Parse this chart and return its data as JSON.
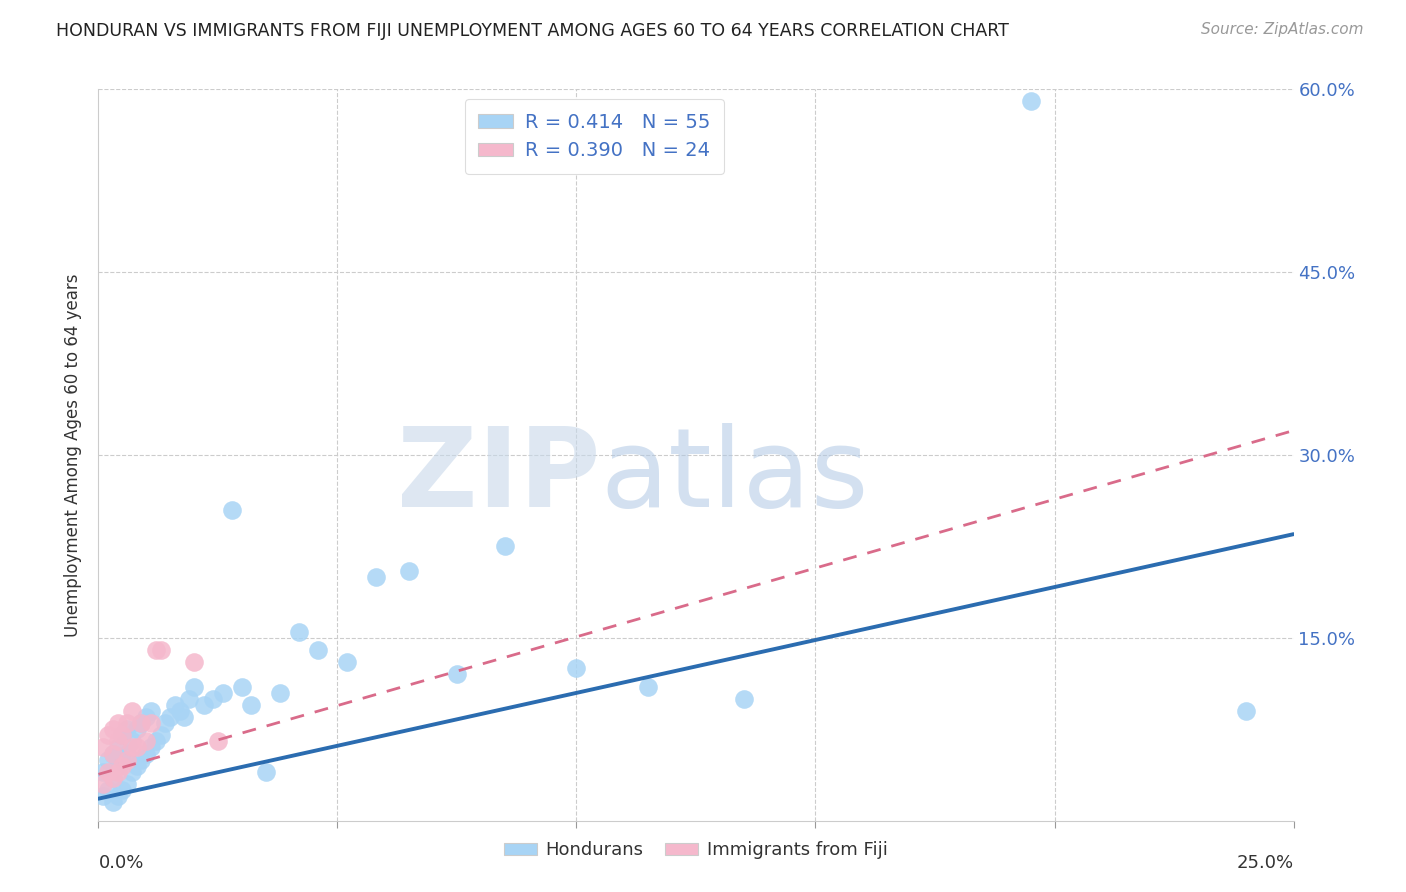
{
  "title": "HONDURAN VS IMMIGRANTS FROM FIJI UNEMPLOYMENT AMONG AGES 60 TO 64 YEARS CORRELATION CHART",
  "source": "Source: ZipAtlas.com",
  "ylabel": "Unemployment Among Ages 60 to 64 years",
  "hondurans_color": "#a8d4f5",
  "fiji_color": "#f5b8cc",
  "hondurans_line_color": "#2b6cb0",
  "fiji_line_color": "#d96b8a",
  "legend_hondurans_R": "0.414",
  "legend_hondurans_N": "55",
  "legend_fiji_R": "0.390",
  "legend_fiji_N": "24",
  "xlim": [
    0.0,
    0.25
  ],
  "ylim": [
    0.0,
    0.6
  ],
  "hondurans_line_x0": 0.0,
  "hondurans_line_y0": 0.018,
  "hondurans_line_x1": 0.25,
  "hondurans_line_y1": 0.235,
  "fiji_line_x0": 0.0,
  "fiji_line_y0": 0.038,
  "fiji_line_x1": 0.25,
  "fiji_line_y1": 0.32,
  "hondurans_x": [
    0.001,
    0.001,
    0.002,
    0.002,
    0.003,
    0.003,
    0.003,
    0.004,
    0.004,
    0.004,
    0.005,
    0.005,
    0.005,
    0.006,
    0.006,
    0.006,
    0.007,
    0.007,
    0.008,
    0.008,
    0.009,
    0.009,
    0.01,
    0.01,
    0.011,
    0.011,
    0.012,
    0.013,
    0.014,
    0.015,
    0.016,
    0.017,
    0.018,
    0.019,
    0.02,
    0.022,
    0.024,
    0.026,
    0.028,
    0.03,
    0.032,
    0.035,
    0.038,
    0.042,
    0.046,
    0.052,
    0.058,
    0.065,
    0.075,
    0.085,
    0.1,
    0.115,
    0.135,
    0.195,
    0.24
  ],
  "hondurans_y": [
    0.02,
    0.04,
    0.025,
    0.05,
    0.015,
    0.035,
    0.055,
    0.02,
    0.045,
    0.06,
    0.025,
    0.05,
    0.07,
    0.03,
    0.055,
    0.075,
    0.04,
    0.065,
    0.045,
    0.075,
    0.05,
    0.08,
    0.055,
    0.085,
    0.06,
    0.09,
    0.065,
    0.07,
    0.08,
    0.085,
    0.095,
    0.09,
    0.085,
    0.1,
    0.11,
    0.095,
    0.1,
    0.105,
    0.255,
    0.11,
    0.095,
    0.04,
    0.105,
    0.155,
    0.14,
    0.13,
    0.2,
    0.205,
    0.12,
    0.225,
    0.125,
    0.11,
    0.1,
    0.59,
    0.09
  ],
  "fiji_x": [
    0.001,
    0.001,
    0.002,
    0.002,
    0.003,
    0.003,
    0.003,
    0.004,
    0.004,
    0.004,
    0.005,
    0.005,
    0.006,
    0.006,
    0.007,
    0.007,
    0.008,
    0.009,
    0.01,
    0.011,
    0.012,
    0.013,
    0.02,
    0.025
  ],
  "fiji_y": [
    0.03,
    0.06,
    0.04,
    0.07,
    0.035,
    0.055,
    0.075,
    0.04,
    0.065,
    0.08,
    0.045,
    0.07,
    0.05,
    0.08,
    0.06,
    0.09,
    0.06,
    0.08,
    0.065,
    0.08,
    0.14,
    0.14,
    0.13,
    0.065
  ]
}
